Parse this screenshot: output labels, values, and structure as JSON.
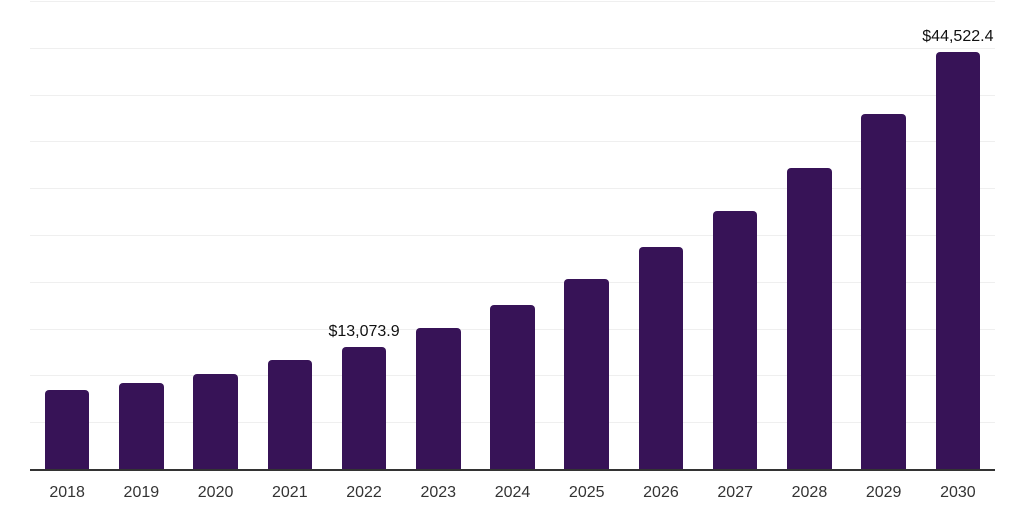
{
  "chart_data": {
    "type": "bar",
    "title": "",
    "xlabel": "",
    "ylabel": "",
    "categories": [
      "2018",
      "2019",
      "2020",
      "2021",
      "2022",
      "2023",
      "2024",
      "2025",
      "2026",
      "2027",
      "2028",
      "2029",
      "2030"
    ],
    "values": [
      8440,
      9230,
      10140,
      11600,
      13073.9,
      15110,
      17520,
      20320,
      23700,
      27530,
      32210,
      37880,
      44522.4
    ],
    "point_labels": [
      "",
      "",
      "",
      "",
      "$13,073.9",
      "",
      "",
      "",
      "",
      "",
      "",
      "",
      "$44,522.4"
    ],
    "ylim": [
      0,
      50000
    ],
    "grid_step": 5000,
    "grid": true,
    "legend": false,
    "colors": {
      "bar": "#371357",
      "axis": "#333333",
      "grid": "#efefef",
      "tick_text": "#333333",
      "label_text": "#111111"
    }
  }
}
